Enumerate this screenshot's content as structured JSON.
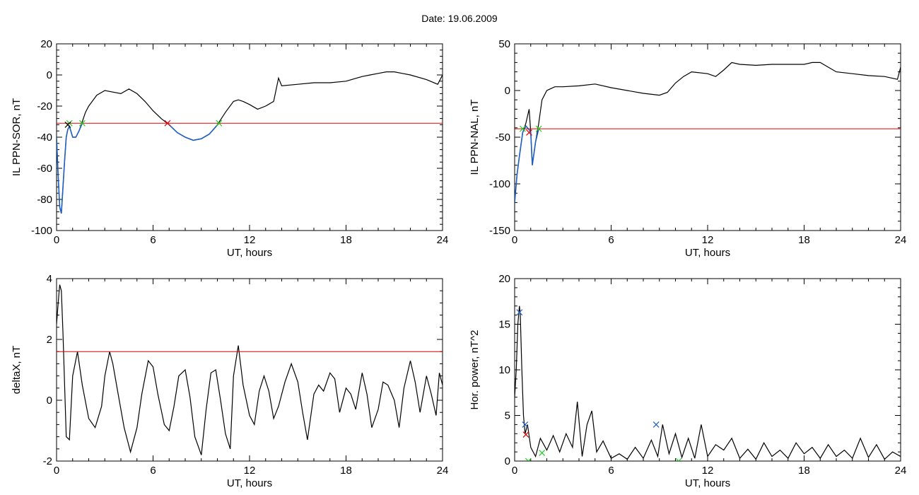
{
  "page": {
    "title": "Date:  19.06.2009"
  },
  "chart_data": [
    {
      "type": "line",
      "xlabel": "UT, hours",
      "ylabel": "IL PPN-SOR, nT",
      "xlim": [
        0,
        24
      ],
      "ylim": [
        -100,
        20
      ],
      "xticks": [
        0,
        6,
        12,
        18,
        24
      ],
      "yticks": [
        -100,
        -80,
        -60,
        -40,
        -20,
        0,
        20
      ],
      "threshold": {
        "value": -31,
        "color": "#e00000"
      },
      "series": [
        {
          "color": "#000000",
          "x": [
            0,
            0.1,
            0.2,
            0.3,
            0.4,
            0.5,
            0.6,
            0.7,
            0.8,
            1.0,
            1.2,
            1.4,
            1.6,
            1.8,
            2.0,
            2.5,
            3.0,
            3.5,
            4.0,
            4.5,
            5.0,
            5.5,
            6.0,
            6.5,
            7.0,
            7.5,
            8.0,
            8.5,
            9.0,
            9.5,
            10.0,
            10.5,
            11.0,
            11.3,
            11.6,
            12.0,
            12.5,
            13.0,
            13.5,
            13.8,
            14.0,
            15.0,
            16.0,
            17.0,
            18.0,
            19.0,
            19.5,
            20.0,
            20.5,
            21.0,
            21.5,
            22.0,
            23.0,
            23.7,
            24.0
          ],
          "y": [
            -40,
            -65,
            -85,
            -89,
            -72,
            -55,
            -40,
            -35,
            -33,
            -40,
            -40,
            -36,
            -30,
            -24,
            -20,
            -13,
            -10,
            -11,
            -12,
            -9,
            -12,
            -17,
            -23,
            -28,
            -32,
            -37,
            -40,
            -42,
            -41,
            -38,
            -32,
            -24,
            -17,
            -16,
            -17,
            -19,
            -22,
            -20,
            -17,
            -2,
            -7,
            -6,
            -5,
            -5,
            -4,
            -1,
            0,
            1,
            2,
            2,
            1,
            0,
            -3,
            -6,
            0
          ]
        }
      ],
      "blue_segments": [
        {
          "x": [
            0.0,
            0.1,
            0.2,
            0.3,
            0.4,
            0.5,
            0.6,
            0.7,
            0.8,
            1.0,
            1.2,
            1.4,
            1.6
          ],
          "y": [
            -40,
            -65,
            -85,
            -89,
            -72,
            -55,
            -40,
            -35,
            -33,
            -40,
            -40,
            -36,
            -31
          ]
        },
        {
          "x": [
            6.9,
            7.5,
            8.0,
            8.5,
            9.0,
            9.5,
            10.1
          ],
          "y": [
            -31,
            -37,
            -40,
            -42,
            -41,
            -38,
            -31
          ]
        }
      ],
      "markers": [
        {
          "x": 0.8,
          "y": -31,
          "color": "#22cc22"
        },
        {
          "x": 1.6,
          "y": -31,
          "color": "#22cc22"
        },
        {
          "x": 0.7,
          "y": -32,
          "color": "#000000"
        },
        {
          "x": 6.9,
          "y": -31,
          "color": "#e00000"
        },
        {
          "x": 10.1,
          "y": -31,
          "color": "#22cc22"
        }
      ]
    },
    {
      "type": "line",
      "xlabel": "UT, hours",
      "ylabel": "IL PPN-NAL, nT",
      "xlim": [
        0,
        24
      ],
      "ylim": [
        -150,
        50
      ],
      "xticks": [
        0,
        6,
        12,
        18,
        24
      ],
      "yticks": [
        -150,
        -100,
        -50,
        0,
        50
      ],
      "threshold": {
        "value": -41,
        "color": "#e00000"
      },
      "series": [
        {
          "color": "#000000",
          "x": [
            0,
            0.15,
            0.3,
            0.5,
            0.7,
            0.9,
            1.0,
            1.1,
            1.3,
            1.5,
            1.7,
            2.0,
            2.5,
            3.0,
            4.0,
            5.0,
            6.0,
            7.0,
            8.0,
            9.0,
            9.5,
            10.0,
            10.5,
            11.0,
            12.0,
            12.5,
            13.0,
            13.5,
            14.0,
            15.0,
            16.0,
            17.0,
            18.0,
            18.5,
            19.0,
            19.5,
            20.0,
            21.0,
            22.0,
            23.0,
            23.8,
            24.0
          ],
          "y": [
            -120,
            -90,
            -70,
            -45,
            -35,
            -20,
            -45,
            -80,
            -55,
            -35,
            -10,
            0,
            4,
            4,
            5,
            7,
            3,
            0,
            -3,
            -5,
            -2,
            8,
            15,
            20,
            18,
            15,
            22,
            30,
            28,
            27,
            28,
            28,
            28,
            30,
            30,
            25,
            20,
            18,
            16,
            15,
            12,
            25
          ]
        }
      ],
      "blue_segments": [
        {
          "x": [
            0,
            0.15,
            0.3,
            0.5,
            0.7,
            0.9,
            1.0,
            1.1,
            1.3,
            1.5
          ],
          "y": [
            -120,
            -90,
            -70,
            -45,
            -38,
            -42,
            -45,
            -80,
            -55,
            -41
          ]
        }
      ],
      "markers": [
        {
          "x": 0.5,
          "y": -41,
          "color": "#22cc22"
        },
        {
          "x": 0.9,
          "y": -45,
          "color": "#e00000"
        },
        {
          "x": 1.5,
          "y": -41,
          "color": "#22cc22"
        }
      ]
    },
    {
      "type": "line",
      "xlabel": "UT, hours",
      "ylabel": "deltaX, nT",
      "xlim": [
        0,
        24
      ],
      "ylim": [
        -2,
        4
      ],
      "xticks": [
        0,
        6,
        12,
        18,
        24
      ],
      "yticks": [
        -2,
        0,
        2,
        4
      ],
      "threshold": {
        "value": 1.6,
        "color": "#e00000"
      },
      "series": [
        {
          "color": "#000000",
          "x": [
            0,
            0.1,
            0.2,
            0.3,
            0.4,
            0.6,
            0.8,
            1.0,
            1.3,
            1.6,
            2.0,
            2.4,
            2.8,
            3.0,
            3.3,
            3.5,
            3.8,
            4.2,
            4.6,
            5.0,
            5.3,
            5.7,
            6.0,
            6.3,
            6.7,
            7.0,
            7.3,
            7.6,
            8.0,
            8.3,
            8.6,
            9.0,
            9.3,
            9.6,
            9.9,
            10.2,
            10.5,
            10.8,
            11.0,
            11.3,
            11.6,
            12.0,
            12.3,
            12.6,
            12.9,
            13.2,
            13.5,
            13.8,
            14.2,
            14.6,
            15.0,
            15.3,
            15.6,
            16.0,
            16.3,
            16.6,
            17.0,
            17.3,
            17.6,
            18.0,
            18.3,
            18.6,
            19.0,
            19.3,
            19.6,
            20.0,
            20.3,
            20.6,
            21.0,
            21.3,
            21.6,
            22.0,
            22.3,
            22.6,
            23.0,
            23.3,
            23.6,
            23.8,
            24.0
          ],
          "y": [
            2.5,
            3.2,
            3.8,
            3.6,
            2.2,
            -1.2,
            -1.3,
            0.8,
            1.6,
            0.5,
            -0.6,
            -0.9,
            -0.2,
            0.8,
            1.6,
            1.2,
            0.3,
            -0.9,
            -1.7,
            -0.9,
            0.2,
            1.3,
            1.1,
            0.2,
            -0.8,
            -1.0,
            -0.2,
            0.8,
            1.0,
            0.1,
            -1.2,
            -1.8,
            -0.3,
            0.9,
            1.0,
            0.0,
            -1.1,
            -1.6,
            0.8,
            1.8,
            0.5,
            -0.5,
            -0.8,
            0.3,
            0.8,
            0.3,
            -0.6,
            -0.2,
            0.6,
            1.2,
            0.6,
            -0.4,
            -1.3,
            0.2,
            0.5,
            0.3,
            0.9,
            0.7,
            -0.4,
            0.4,
            0.2,
            -0.3,
            0.9,
            0.2,
            -0.9,
            -0.3,
            0.6,
            0.5,
            0.0,
            -0.9,
            0.4,
            1.3,
            0.6,
            -0.4,
            0.8,
            0.2,
            -0.5,
            0.9,
            0.5
          ]
        }
      ],
      "blue_segments": [],
      "markers": []
    },
    {
      "type": "line",
      "xlabel": "UT, hours",
      "ylabel": "Hor. power, nT^2",
      "xlim": [
        0,
        24
      ],
      "ylim": [
        0,
        20
      ],
      "xticks": [
        0,
        6,
        12,
        18,
        24
      ],
      "yticks": [
        0,
        5,
        10,
        15,
        20
      ],
      "threshold": null,
      "series": [
        {
          "color": "#000000",
          "x": [
            0,
            0.1,
            0.2,
            0.3,
            0.35,
            0.45,
            0.55,
            0.65,
            0.8,
            1.0,
            1.3,
            1.6,
            2.0,
            2.4,
            2.8,
            3.2,
            3.6,
            3.9,
            4.2,
            4.5,
            4.8,
            5.1,
            5.5,
            6.0,
            6.5,
            7.0,
            7.5,
            8.0,
            8.5,
            8.9,
            9.2,
            9.6,
            10.0,
            10.4,
            10.8,
            11.2,
            11.6,
            12.0,
            12.5,
            13.0,
            13.5,
            14.0,
            14.5,
            15.0,
            15.5,
            16.0,
            16.5,
            17.0,
            17.5,
            18.0,
            18.5,
            19.0,
            19.5,
            20.0,
            20.5,
            21.0,
            21.5,
            22.0,
            22.5,
            23.0,
            23.5,
            24.0
          ],
          "y": [
            7,
            10,
            15,
            17,
            16,
            10,
            5,
            3,
            4,
            1.5,
            0.5,
            2.5,
            1.2,
            2.8,
            1.0,
            3.0,
            1.5,
            6.5,
            0.5,
            4.0,
            5.5,
            1.0,
            2.2,
            0.3,
            0.8,
            0.2,
            1.5,
            0.3,
            2.3,
            0.5,
            4.0,
            0.8,
            3.0,
            0.4,
            2.5,
            0.3,
            4.0,
            0.5,
            1.8,
            1.2,
            2.5,
            0.3,
            1.3,
            0.2,
            2.0,
            0.5,
            1.2,
            0.3,
            2.0,
            0.8,
            1.5,
            0.3,
            1.8,
            0.5,
            1.2,
            0.3,
            2.5,
            0.4,
            1.8,
            0.2,
            1.0,
            0.5
          ]
        }
      ],
      "blue_segments": [],
      "markers": [
        {
          "x": 0.3,
          "y": 16.3,
          "color": "#1f5fbf"
        },
        {
          "x": 0.65,
          "y": 4.0,
          "color": "#1f5fbf"
        },
        {
          "x": 0.7,
          "y": 2.9,
          "color": "#e00000"
        },
        {
          "x": 8.8,
          "y": 4.0,
          "color": "#1f5fbf"
        },
        {
          "x": 0.85,
          "y": 0.0,
          "color": "#22cc22"
        },
        {
          "x": 1.7,
          "y": 0.9,
          "color": "#22cc22"
        },
        {
          "x": 10.2,
          "y": 0.0,
          "color": "#22cc22"
        }
      ]
    }
  ]
}
